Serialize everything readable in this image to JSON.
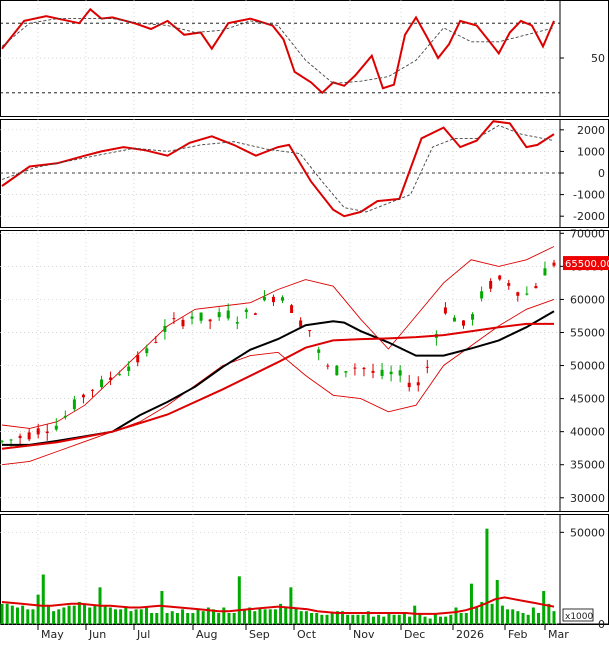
{
  "chart_data": [
    {
      "type": "line",
      "panel": "oscillator-top",
      "yticks": [
        50
      ],
      "ylim": [
        0,
        100
      ],
      "reference_lines": [
        80,
        20
      ],
      "series": [
        {
          "color": "#dd0000",
          "style": "solid",
          "x": [
            0,
            0.04,
            0.08,
            0.11,
            0.14,
            0.16,
            0.18,
            0.2,
            0.24,
            0.27,
            0.3,
            0.33,
            0.36,
            0.38,
            0.41,
            0.45,
            0.49,
            0.51,
            0.53,
            0.56,
            0.58,
            0.6,
            0.62,
            0.64,
            0.67,
            0.69,
            0.71,
            0.73,
            0.75,
            0.77,
            0.79,
            0.81,
            0.83,
            0.86,
            0.88,
            0.9,
            0.92,
            0.94,
            0.96,
            0.98,
            1.0
          ],
          "values": [
            58,
            82,
            86,
            83,
            80,
            92,
            84,
            85,
            80,
            75,
            82,
            70,
            72,
            58,
            80,
            84,
            78,
            66,
            38,
            29,
            20,
            29,
            26,
            35,
            52,
            24,
            27,
            70,
            85,
            68,
            50,
            62,
            82,
            78,
            66,
            54,
            72,
            82,
            78,
            60,
            82
          ]
        },
        {
          "color": "#444444",
          "style": "dashed",
          "x": [
            0,
            0.05,
            0.1,
            0.15,
            0.2,
            0.25,
            0.3,
            0.35,
            0.4,
            0.45,
            0.5,
            0.55,
            0.6,
            0.65,
            0.7,
            0.75,
            0.8,
            0.85,
            0.9,
            0.95,
            1.0
          ],
          "values": [
            60,
            80,
            84,
            84,
            84,
            80,
            78,
            72,
            74,
            82,
            78,
            48,
            28,
            30,
            34,
            48,
            76,
            64,
            64,
            70,
            76
          ]
        }
      ]
    },
    {
      "type": "line",
      "panel": "oscillator-middle",
      "yticks": [
        2000,
        1000,
        0,
        -1000,
        -2000
      ],
      "ylim": [
        -2500,
        2500
      ],
      "reference_lines": [
        0
      ],
      "series": [
        {
          "color": "#dd0000",
          "style": "solid",
          "x": [
            0,
            0.05,
            0.1,
            0.15,
            0.18,
            0.22,
            0.26,
            0.3,
            0.34,
            0.38,
            0.42,
            0.46,
            0.5,
            0.52,
            0.56,
            0.6,
            0.62,
            0.65,
            0.68,
            0.72,
            0.76,
            0.8,
            0.83,
            0.86,
            0.89,
            0.92,
            0.95,
            0.97,
            1.0
          ],
          "values": [
            -600,
            300,
            450,
            800,
            1000,
            1200,
            1050,
            800,
            1400,
            1700,
            1300,
            800,
            1200,
            1300,
            -400,
            -1700,
            -2000,
            -1800,
            -1300,
            -1200,
            1600,
            2100,
            1200,
            1500,
            2400,
            2300,
            1200,
            1300,
            1800
          ]
        },
        {
          "color": "#444444",
          "style": "dashed",
          "x": [
            0,
            0.06,
            0.12,
            0.18,
            0.24,
            0.3,
            0.36,
            0.42,
            0.48,
            0.54,
            0.58,
            0.62,
            0.66,
            0.7,
            0.74,
            0.78,
            0.82,
            0.86,
            0.9,
            0.94,
            1.0
          ],
          "values": [
            -300,
            250,
            550,
            850,
            1150,
            1000,
            1300,
            1450,
            1100,
            900,
            -400,
            -1600,
            -1800,
            -1400,
            -1000,
            1200,
            1600,
            1600,
            2200,
            1800,
            1500
          ]
        }
      ]
    },
    {
      "type": "line",
      "panel": "price",
      "yticks": [
        70000,
        65000,
        60000,
        55000,
        50000,
        45000,
        40000,
        35000,
        30000
      ],
      "ylim": [
        28000,
        70500
      ],
      "price_label": "65500.00",
      "bollinger": {
        "color": "#dd0000",
        "x": [
          0,
          0.05,
          0.1,
          0.15,
          0.2,
          0.25,
          0.3,
          0.35,
          0.4,
          0.45,
          0.5,
          0.55,
          0.6,
          0.65,
          0.7,
          0.75,
          0.8,
          0.85,
          0.9,
          0.95,
          1.0
        ],
        "upper": [
          41000,
          40500,
          41500,
          44000,
          48000,
          52000,
          56000,
          58500,
          59000,
          59500,
          61500,
          63000,
          62000,
          57000,
          52500,
          57500,
          62500,
          66000,
          65000,
          66000,
          68000
        ],
        "lower": [
          35000,
          35500,
          37000,
          38500,
          40000,
          41500,
          44000,
          47000,
          50000,
          51500,
          52000,
          48500,
          45500,
          45000,
          43000,
          44000,
          50000,
          53000,
          56000,
          58500,
          60000
        ]
      },
      "series": [
        {
          "name": "",
          "color": "#000000",
          "style": "solid",
          "width": 2,
          "x": [
            0,
            0.05,
            0.1,
            0.15,
            0.2,
            0.25,
            0.3,
            0.35,
            0.4,
            0.45,
            0.5,
            0.55,
            0.6,
            0.62,
            0.65,
            0.7,
            0.75,
            0.8,
            0.85,
            0.9,
            0.95,
            1.0
          ],
          "values": [
            38000,
            38000,
            38600,
            39300,
            40000,
            42500,
            44500,
            46800,
            49800,
            52400,
            54000,
            56100,
            56700,
            56500,
            55200,
            53500,
            51500,
            51500,
            52600,
            53800,
            55800,
            58200
          ]
        },
        {
          "name": "",
          "color": "#dd0000",
          "style": "solid",
          "width": 2,
          "x": [
            0,
            0.1,
            0.2,
            0.3,
            0.4,
            0.5,
            0.55,
            0.6,
            0.65,
            0.7,
            0.75,
            0.8,
            0.85,
            0.9,
            0.95,
            1.0
          ],
          "values": [
            37400,
            38400,
            40000,
            42600,
            46400,
            50500,
            52700,
            53800,
            54000,
            54100,
            54300,
            54600,
            55200,
            55800,
            56300,
            56300
          ]
        }
      ],
      "candles_path": [
        38500,
        38800,
        39200,
        39600,
        40200,
        40600,
        41000,
        42300,
        44000,
        45500,
        46600,
        47200,
        48000,
        49200,
        50000,
        50800,
        52000,
        54000,
        55500,
        56400,
        56800,
        57600,
        57200,
        56800,
        57400,
        57800,
        57200,
        57800,
        58500,
        59800,
        60400,
        60600,
        58600,
        56600,
        55400,
        52000,
        49600,
        49300,
        49500,
        49800,
        49600,
        48900,
        48500,
        48700,
        48400,
        47500,
        47200,
        49800,
        55000,
        58500,
        57200,
        56000,
        57500,
        60500,
        62200,
        62900,
        62500,
        61400,
        60800,
        62200,
        64300,
        65500
      ]
    },
    {
      "type": "bar",
      "panel": "volume",
      "yticks": [
        50000,
        0
      ],
      "ylim": [
        0,
        60000
      ],
      "unit_label": "x1000",
      "bars_color": "#00aa00",
      "avg_color": "#dd0000",
      "volume_values": [
        11000,
        11000,
        10000,
        9000,
        10000,
        8000,
        8000,
        16000,
        27000,
        10000,
        7000,
        8000,
        9000,
        10000,
        10000,
        12000,
        11000,
        9000,
        10000,
        20000,
        10000,
        9000,
        8000,
        8000,
        9000,
        7000,
        8000,
        8000,
        9000,
        6000,
        6000,
        18000,
        6000,
        7000,
        6000,
        8000,
        6000,
        6000,
        8000,
        7000,
        9000,
        8000,
        6000,
        9000,
        6000,
        6000,
        26000,
        8000,
        9000,
        7000,
        9000,
        8000,
        8000,
        8000,
        11000,
        9000,
        20000,
        9000,
        7000,
        7000,
        6000,
        6000,
        5000,
        5000,
        6000,
        7000,
        7000,
        5000,
        5000,
        5000,
        5000,
        7000,
        4000,
        5000,
        4000,
        6000,
        5000,
        5000,
        6000,
        4000,
        10000,
        6000,
        4000,
        3000,
        6000,
        4000,
        4000,
        5000,
        9000,
        6000,
        6000,
        22000,
        9000,
        12000,
        52000,
        11000,
        24000,
        10000,
        8000,
        8000,
        7000,
        6000,
        5000,
        9000,
        6000,
        18000,
        11000,
        7000
      ],
      "average": [
        12000,
        11500,
        11000,
        10500,
        10000,
        10000,
        10500,
        11000,
        11000,
        10500,
        10000,
        10000,
        9500,
        9000,
        9000,
        9500,
        10000,
        9500,
        9000,
        8500,
        8000,
        7500,
        7000,
        7000,
        7500,
        8000,
        8500,
        9000,
        9500,
        9000,
        8500,
        8000,
        7000,
        6500,
        6000,
        6000,
        6000,
        6000,
        6000,
        6000,
        6000,
        6000,
        5500,
        5500,
        5500,
        6000,
        6500,
        7500,
        9000,
        11000,
        13500,
        14500,
        13500,
        12500,
        11500,
        10500,
        9500
      ]
    }
  ],
  "xaxis": {
    "labels": [
      "May",
      "Jun",
      "Jul",
      "Aug",
      "Sep",
      "Oct",
      "Nov",
      "Dec",
      "2026",
      "Feb",
      "Mar"
    ]
  },
  "colors": {
    "up": "#00aa00",
    "down": "#dd0000",
    "grid": "#c8c8c8",
    "frame": "#000000",
    "price_tag": "#ee0000"
  }
}
